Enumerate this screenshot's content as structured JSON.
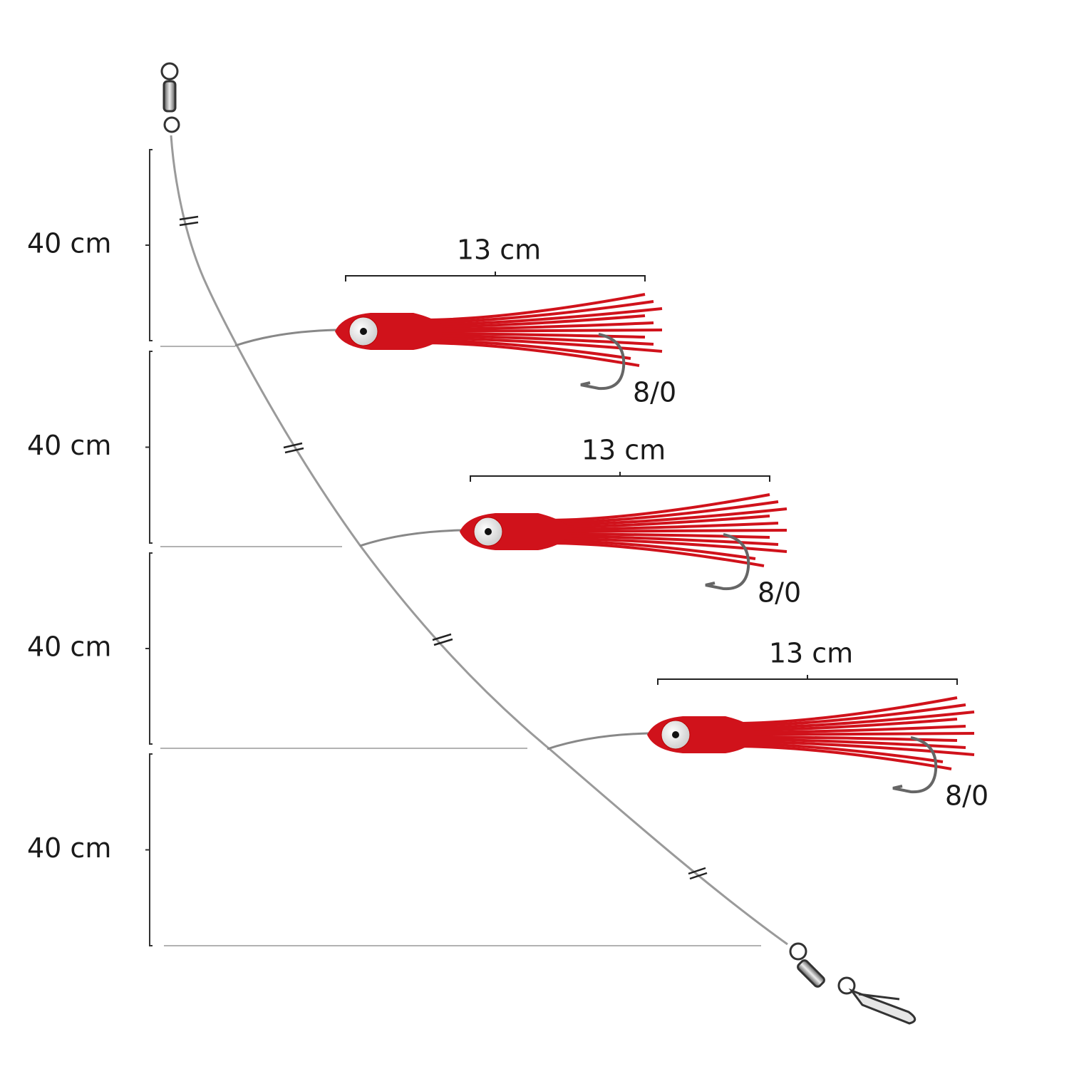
{
  "segments": [
    {
      "label": "40 cm"
    },
    {
      "label": "40 cm"
    },
    {
      "label": "40 cm"
    },
    {
      "label": "40 cm"
    }
  ],
  "lures": [
    {
      "length": "13 cm",
      "hook": "8/0"
    },
    {
      "length": "13 cm",
      "hook": "8/0"
    },
    {
      "length": "13 cm",
      "hook": "8/0"
    }
  ]
}
